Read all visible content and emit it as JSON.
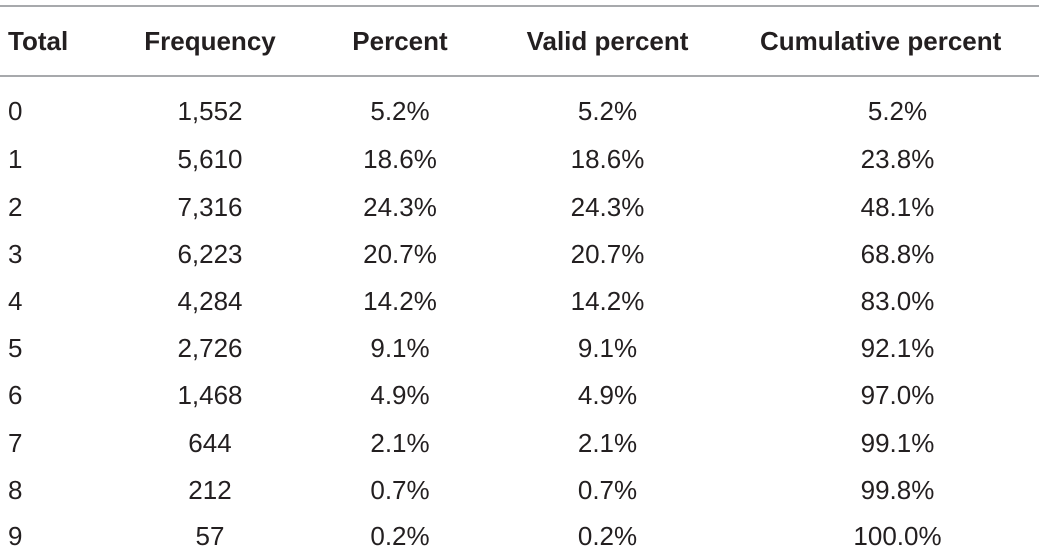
{
  "table": {
    "headers": {
      "total": "Total",
      "frequency": "Frequency",
      "percent": "Percent",
      "valid_percent": "Valid percent",
      "cumulative_percent": "Cumulative percent"
    },
    "rows": [
      {
        "total": "0",
        "frequency": "1,552",
        "percent": "5.2%",
        "valid_percent": "5.2%",
        "cumulative_percent": "5.2%"
      },
      {
        "total": "1",
        "frequency": "5,610",
        "percent": "18.6%",
        "valid_percent": "18.6%",
        "cumulative_percent": "23.8%"
      },
      {
        "total": "2",
        "frequency": "7,316",
        "percent": "24.3%",
        "valid_percent": "24.3%",
        "cumulative_percent": "48.1%"
      },
      {
        "total": "3",
        "frequency": "6,223",
        "percent": "20.7%",
        "valid_percent": "20.7%",
        "cumulative_percent": "68.8%"
      },
      {
        "total": "4",
        "frequency": "4,284",
        "percent": "14.2%",
        "valid_percent": "14.2%",
        "cumulative_percent": "83.0%"
      },
      {
        "total": "5",
        "frequency": "2,726",
        "percent": "9.1%",
        "valid_percent": "9.1%",
        "cumulative_percent": "92.1%"
      },
      {
        "total": "6",
        "frequency": "1,468",
        "percent": "4.9%",
        "valid_percent": "4.9%",
        "cumulative_percent": "97.0%"
      },
      {
        "total": "7",
        "frequency": "644",
        "percent": "2.1%",
        "valid_percent": "2.1%",
        "cumulative_percent": "99.1%"
      },
      {
        "total": "8",
        "frequency": "212",
        "percent": "0.7%",
        "valid_percent": "0.7%",
        "cumulative_percent": "99.8%"
      },
      {
        "total": "9",
        "frequency": "57",
        "percent": "0.2%",
        "valid_percent": "0.2%",
        "cumulative_percent": "100.0%"
      }
    ]
  }
}
